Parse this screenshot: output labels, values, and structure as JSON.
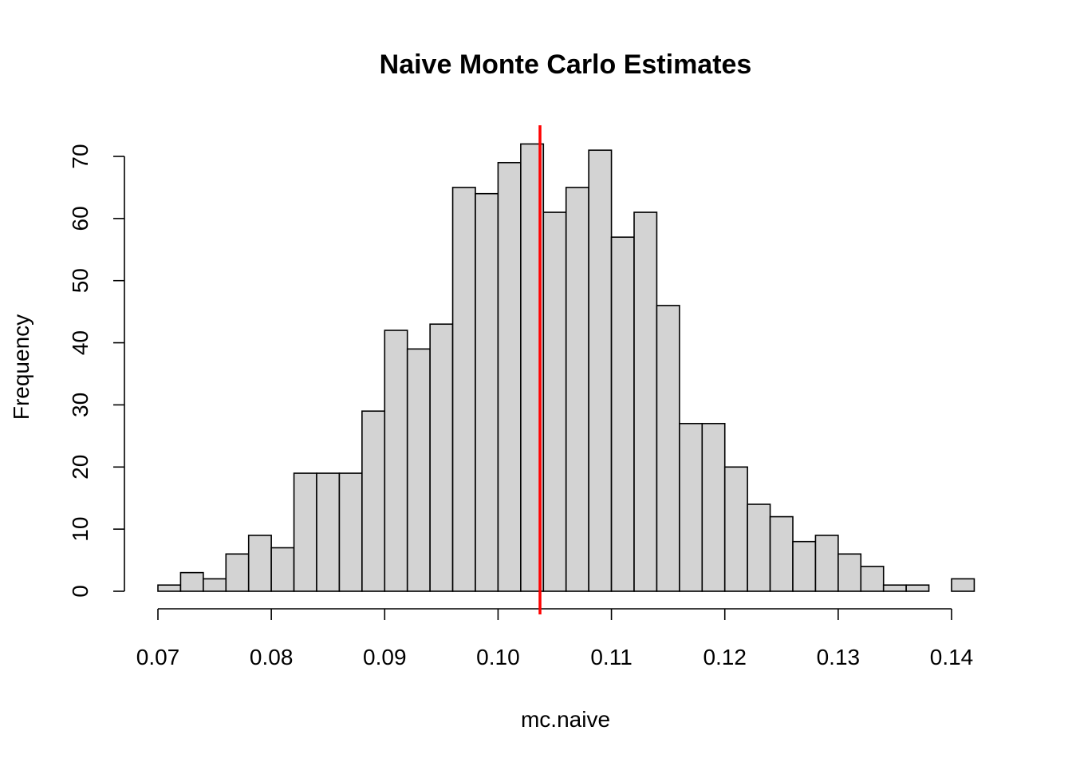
{
  "chart_data": {
    "type": "bar",
    "subtype": "histogram",
    "title": "Naive Monte Carlo Estimates",
    "xlabel": "mc.naive",
    "ylabel": "Frequency",
    "bin_width": 0.002,
    "bins": [
      {
        "start": 0.07,
        "end": 0.072,
        "count": 1
      },
      {
        "start": 0.072,
        "end": 0.074,
        "count": 3
      },
      {
        "start": 0.074,
        "end": 0.076,
        "count": 2
      },
      {
        "start": 0.076,
        "end": 0.078,
        "count": 6
      },
      {
        "start": 0.078,
        "end": 0.08,
        "count": 9
      },
      {
        "start": 0.08,
        "end": 0.082,
        "count": 7
      },
      {
        "start": 0.082,
        "end": 0.084,
        "count": 19
      },
      {
        "start": 0.084,
        "end": 0.086,
        "count": 19
      },
      {
        "start": 0.086,
        "end": 0.088,
        "count": 19
      },
      {
        "start": 0.088,
        "end": 0.09,
        "count": 29
      },
      {
        "start": 0.09,
        "end": 0.092,
        "count": 42
      },
      {
        "start": 0.092,
        "end": 0.094,
        "count": 39
      },
      {
        "start": 0.094,
        "end": 0.096,
        "count": 43
      },
      {
        "start": 0.096,
        "end": 0.098,
        "count": 65
      },
      {
        "start": 0.098,
        "end": 0.1,
        "count": 64
      },
      {
        "start": 0.1,
        "end": 0.102,
        "count": 69
      },
      {
        "start": 0.102,
        "end": 0.104,
        "count": 72
      },
      {
        "start": 0.104,
        "end": 0.106,
        "count": 61
      },
      {
        "start": 0.106,
        "end": 0.108,
        "count": 65
      },
      {
        "start": 0.108,
        "end": 0.11,
        "count": 71
      },
      {
        "start": 0.11,
        "end": 0.112,
        "count": 57
      },
      {
        "start": 0.112,
        "end": 0.114,
        "count": 61
      },
      {
        "start": 0.114,
        "end": 0.116,
        "count": 46
      },
      {
        "start": 0.116,
        "end": 0.118,
        "count": 27
      },
      {
        "start": 0.118,
        "end": 0.12,
        "count": 27
      },
      {
        "start": 0.12,
        "end": 0.122,
        "count": 20
      },
      {
        "start": 0.122,
        "end": 0.124,
        "count": 14
      },
      {
        "start": 0.124,
        "end": 0.126,
        "count": 12
      },
      {
        "start": 0.126,
        "end": 0.128,
        "count": 8
      },
      {
        "start": 0.128,
        "end": 0.13,
        "count": 9
      },
      {
        "start": 0.13,
        "end": 0.132,
        "count": 6
      },
      {
        "start": 0.132,
        "end": 0.134,
        "count": 4
      },
      {
        "start": 0.134,
        "end": 0.136,
        "count": 1
      },
      {
        "start": 0.136,
        "end": 0.138,
        "count": 1
      },
      {
        "start": 0.138,
        "end": 0.14,
        "count": 0
      },
      {
        "start": 0.14,
        "end": 0.142,
        "count": 2
      }
    ],
    "xlim": [
      0.07,
      0.142
    ],
    "ylim": [
      0,
      75
    ],
    "x_ticks": [
      0.07,
      0.08,
      0.09,
      0.1,
      0.11,
      0.12,
      0.13,
      0.14
    ],
    "x_tick_labels": [
      "0.07",
      "0.08",
      "0.09",
      "0.10",
      "0.11",
      "0.12",
      "0.13",
      "0.14"
    ],
    "y_ticks": [
      0,
      10,
      20,
      30,
      40,
      50,
      60,
      70
    ],
    "y_tick_labels": [
      "0",
      "10",
      "20",
      "30",
      "40",
      "50",
      "60",
      "70"
    ],
    "reference_line": {
      "orientation": "vertical",
      "x": 0.1037,
      "color": "#ff0000"
    },
    "grid": false,
    "legend": "none",
    "colors": {
      "bar_fill": "#d3d3d3",
      "bar_stroke": "#000000",
      "axis": "#000000",
      "reference_line": "#ff0000"
    }
  }
}
